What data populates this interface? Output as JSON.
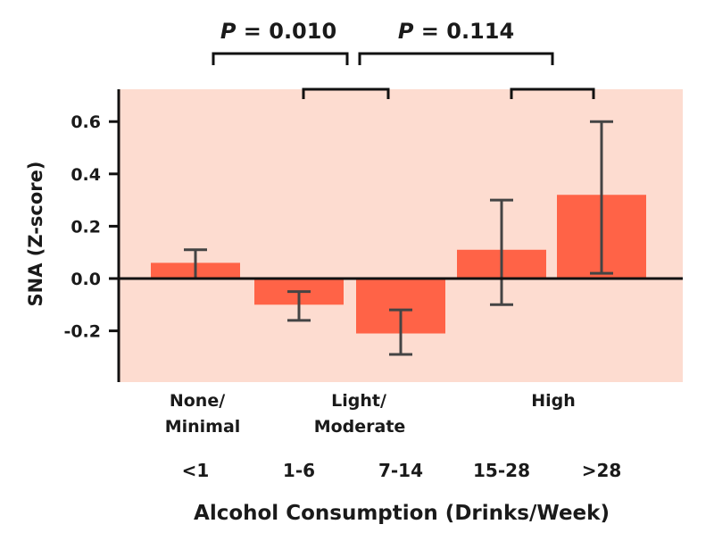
{
  "chart_data": {
    "type": "bar",
    "categories": [
      "<1",
      "1-6",
      "7-14",
      "15-28",
      ">28"
    ],
    "values": [
      0.06,
      -0.1,
      -0.21,
      0.11,
      0.32
    ],
    "error_low": [
      0.0,
      -0.16,
      -0.29,
      -0.1,
      0.02
    ],
    "error_high": [
      0.11,
      -0.05,
      -0.12,
      0.3,
      0.6
    ],
    "ylabel": "SNA (Z-score)",
    "xlabel": "Alcohol Consumption (Drinks/Week)",
    "ylim": [
      -0.38,
      0.72
    ],
    "yticks": [
      "0.6",
      "0.4",
      "0.2",
      "0.0",
      "-0.2"
    ],
    "ytick_values": [
      0.6,
      0.4,
      0.2,
      0.0,
      -0.2
    ],
    "groups": [
      {
        "label_lines": [
          "None/",
          "Minimal"
        ],
        "categories": [
          0
        ]
      },
      {
        "label_lines": [
          "Light/",
          "Moderate"
        ],
        "categories": [
          1,
          2
        ]
      },
      {
        "label_lines": [
          "High"
        ],
        "categories": [
          3,
          4
        ]
      }
    ],
    "comparisons": [
      {
        "italic": "P",
        "text": " = 0.010",
        "from_group": 0,
        "to_group": 1
      },
      {
        "italic": "P",
        "text": " = 0.114",
        "from_group": 1,
        "to_group": 2
      }
    ],
    "colors": {
      "bar": "#ff6347",
      "background": "#fddcd0",
      "axis": "#111111",
      "error": "#444444"
    }
  }
}
